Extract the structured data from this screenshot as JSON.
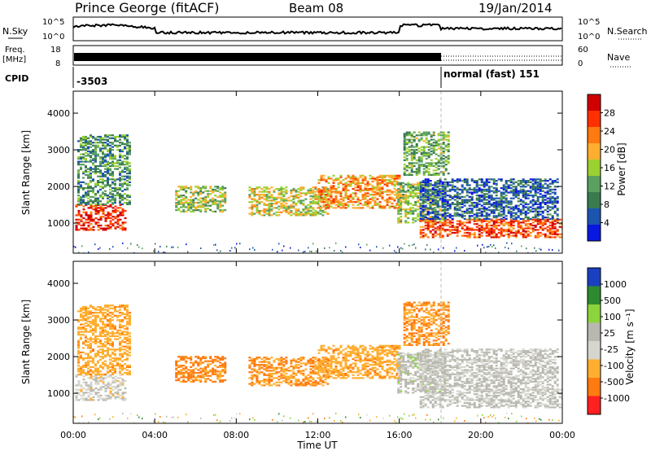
{
  "header": {
    "station": "Prince George (fitACF)",
    "beam": "Beam 08",
    "date": "19/Jan/2014"
  },
  "strip": {
    "nsky_label": "N.Sky",
    "nsky_ticks": [
      "10^5",
      "10^0"
    ],
    "nsearch_label": "N.Search",
    "freq_label_line1": "Freq.",
    "freq_label_line2": "[MHz]",
    "freq_ticks": [
      "18",
      "8"
    ],
    "nave_ticks": [
      "60",
      "0"
    ],
    "nave_label": "Nave",
    "cpid_label": "CPID",
    "cpid_value_1": "-3503",
    "cpid_value_2": "normal (fast) 151",
    "cpid_switch_time": "18:00"
  },
  "panels": {
    "power": {
      "ylabel": "Slant Range [km]",
      "cbar_label": "Power [dB]",
      "cbar_ticks": [
        "28",
        "24",
        "20",
        "16",
        "12",
        "8",
        "4"
      ],
      "cbar_colors": [
        "#d00000",
        "#ff3000",
        "#ff7a10",
        "#ffae30",
        "#9ad030",
        "#5aa060",
        "#3a7a50",
        "#1c54b0",
        "#0818e0"
      ]
    },
    "velocity": {
      "ylabel": "Slant Range [km]",
      "cbar_label": "Velocity [m s⁻¹]",
      "cbar_ticks": [
        "1000",
        "500",
        "100",
        "25",
        "-25",
        "-100",
        "-500",
        "-1000"
      ],
      "cbar_colors": [
        "#1a40c0",
        "#2e8a2e",
        "#8cd43c",
        "#b8b8b0",
        "#d6d6ce",
        "#ffae30",
        "#ff7a10",
        "#ff2020"
      ]
    }
  },
  "x_axis": {
    "label": "Time UT",
    "ticks": [
      "00:00",
      "04:00",
      "08:00",
      "12:00",
      "16:00",
      "20:00",
      "00:00"
    ]
  },
  "chart_data": {
    "type": "heatmap",
    "title": "Prince George (fitACF) Beam 08 19/Jan/2014",
    "xlabel": "Time UT",
    "xlim_hours": [
      0,
      24
    ],
    "ylabel": "Slant Range [km]",
    "ylim_km": [
      180,
      4600
    ],
    "y_ticks_km": [
      1000,
      2000,
      3000,
      4000
    ],
    "power_range_db": [
      0,
      30
    ],
    "velocity_range_ms": [
      -1000,
      1000
    ],
    "echo_regions": [
      {
        "t0": 0.1,
        "t1": 2.6,
        "r0": 800,
        "r1": 1500,
        "power": 26,
        "velocity": -20
      },
      {
        "t0": 0.2,
        "t1": 2.8,
        "r0": 1500,
        "r1": 3400,
        "power": 10,
        "velocity": -200
      },
      {
        "t0": 5.0,
        "t1": 7.5,
        "r0": 1300,
        "r1": 2000,
        "power": 14,
        "velocity": -400
      },
      {
        "t0": 8.6,
        "t1": 12.5,
        "r0": 1200,
        "r1": 2000,
        "power": 16,
        "velocity": -300
      },
      {
        "t0": 12.0,
        "t1": 16.0,
        "r0": 1400,
        "r1": 2300,
        "power": 20,
        "velocity": -200
      },
      {
        "t0": 15.9,
        "t1": 18.2,
        "r0": 1000,
        "r1": 2100,
        "power": 14,
        "velocity": 20
      },
      {
        "t0": 16.2,
        "t1": 18.4,
        "r0": 2300,
        "r1": 3500,
        "power": 12,
        "velocity": -300
      },
      {
        "t0": 17.0,
        "t1": 24.0,
        "r0": 600,
        "r1": 1100,
        "power": 24,
        "velocity": 10
      },
      {
        "t0": 17.0,
        "t1": 23.8,
        "r0": 1100,
        "r1": 2200,
        "power": 6,
        "velocity": 10
      }
    ]
  }
}
